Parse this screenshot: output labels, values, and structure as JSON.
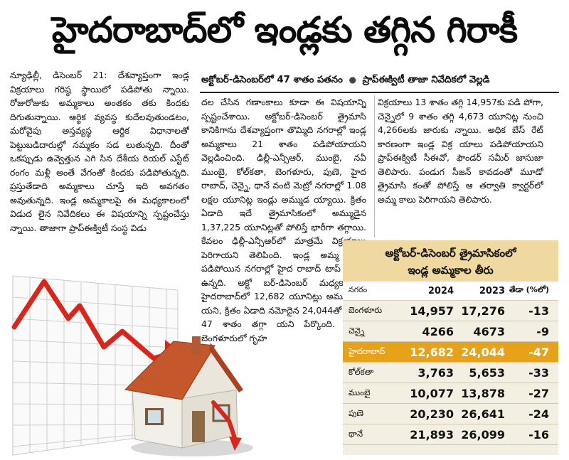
{
  "headline": "హైదరాబాద్‌లో ఇండ్లకు తగ్గిన గిరాకీ",
  "subhead": {
    "left": "అక్టోబర్-డిసెంబర్‌లో 47 శాతం పతనం",
    "right": "ప్రాప్ఈక్విటీ తాజా నివేదికలో వెల్లడి"
  },
  "col1": "న్యూఢిల్లీ, డిసెంబర్ 21: దేశవ్యాప్తంగా ఇండ్ల విక్రయాలు గరిష్ఠ స్థాయిలో పడిపోతు న్నాయి. రోజురోజుకు అమ్మకాలు అంతకం తకు కిందకు దిగుతున్నాయి. ఆర్థిక వ్యవస్థ కుదేలవుతుండటం, మరోవైపు అస్తవ్యస్థ ఆర్థిక విధానాలతో పెట్టుబడిదారుల్లో నమ్మకం సడ లుతున్నది. దీంతో ఒకప్పుడు ఉవ్వెత్తున ఎగి సిన దేశీయ రియల్ ఎస్టేట్ రంగం మళ్లీ అంతే వేగంతో కిందకు పడిపోతున్నది. ప్రస్తుతేడాది అమ్మకాలు చూస్తే ఇది అవగతం అవుతున్నది. ఇండ్ల అమ్మకాలపై ఈ మధ్యకాలంలో విడుద లైన నివేదికలు ఈ విషయాన్ని స్పష్టంచేస్తు న్నాయి. తాజాగా ప్రాప్ఈక్విటీ సంస్థ విడు",
  "col2": "దల చేసిన గణాంకాలు కూడా ఈ విషయాన్ని స్పష్టంచేశాయి. అక్టోబర్-డిసెంబర్ త్రైమాసి కానికిగాను దేశవ్యాప్తంగా తొమ్మిది నగరాల్లో ఇండ్ల అమ్మకాలు 21 శాతం పడిపోయాయని వెల్లడించింది. ఢిల్లీ-ఎన్సీఆర్, ముంబై, నవీ ముంబై, కోల్‌కతా, బెంగళూరు, పుణె, హైద రాబాద్, చెన్నై, థానే వంటి మెట్రో నగరాల్లో 1.08 లక్షల యూనిట్ల ఇండ్లు అమ్ముడ య్యాయి. క్రితం ఏడాది ఇదే త్రైమాసికంలో అమ్ముడైన 1,37,225 యూనిట్లతో పోలిస్తే భారీగా తగ్గాయి. కేవలం ఢిల్లీ-ఎన్సీఆర్‌లో మాత్రమే విక్రయాలు పెరిగాయని తెలిపింది. ఇండ్ల అమ్మ కాలు పడిపోయిన నగరాల్లో హైద రాబాద్ టాప్ ప్లేస్‌లో ఉన్నది. అక్టో బర్-డిసెంబర్ మధ్యకాలంలో హైదరాబాద్‌లో 12,682 యూనిట్లు అమ్ముడుపో యని, క్రితం ఏడాది నమోదైన 24,044తో పోలిస్తే 47 శాతం తగ్గా యని పేర్కొంది. అలాగే బెంగళూరులో గృహ",
  "col3": "విక్రయాలు 13 శాతం తగ్గి 14,957కు పడి పోగా, చెన్నైలో 9 శాతం తగ్గి 4,673 యూనిట్ల నుంచి 4,266లకు జారుకు న్నాయి. అధిక బేస్ రేట్ కారణంగా ఇండ్ల విక్ర యాలు పడిపోయాయని ప్రాప్ఈక్విటీ సీఈవో, ఫౌండర్ సమీర్ జాసుజా తెలిపారు. పండుగ సీజన్ కావడంతో మూడో త్రైమాసి కంతో పోలిస్తే ఆ తర్వాతి క్వార్టర్‌లో అమ్మ కాలు పెరిగాయని తెలిపారు.",
  "table": {
    "title_line1": "అక్టోబర్-డిసెంబర్ త్రైమాసికంలో",
    "title_line2": "ఇండ్ల అమ్మకాల తీరు",
    "headers": [
      "నగరం",
      "2024",
      "2023",
      "తేడా (%లో)"
    ],
    "rows": [
      [
        "బెంగళూరు",
        "14,957",
        "17,276",
        "-13"
      ],
      [
        "చెన్నై",
        "4266",
        "4673",
        "-9"
      ],
      [
        "హైదరాబాద్",
        "12,682",
        "24,044",
        "-47"
      ],
      [
        "కోల్‌కతా",
        "3,763",
        "5,653",
        "-33"
      ],
      [
        "ముంబై",
        "10,077",
        "13,878",
        "-27"
      ],
      [
        "పుణె",
        "20,230",
        "26,641",
        "-24"
      ],
      [
        "థానే",
        "21,893",
        "26,099",
        "-16"
      ]
    ],
    "highlight_row": 2,
    "highlight_color": "#e8a21a"
  },
  "graphic": {
    "trend_color": "#d8261c",
    "roof_color": "#c4572c"
  }
}
